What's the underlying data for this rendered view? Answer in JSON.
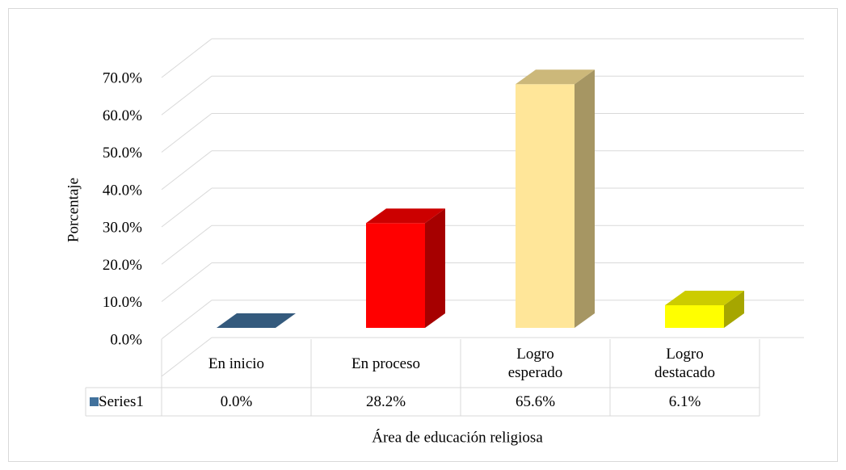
{
  "chart_data": {
    "type": "bar3d",
    "y_label": "Porcentaje",
    "x_label": "Área de educación religiosa",
    "categories": [
      "En inicio",
      "En proceso",
      "Logro esperado",
      "Logro destacado"
    ],
    "series": [
      {
        "name": "Series1",
        "color": "#41719c",
        "values": [
          0.0,
          28.2,
          65.6,
          6.1
        ],
        "value_labels": [
          "0.0%",
          "28.2%",
          "65.6%",
          "6.1%"
        ]
      }
    ],
    "colors": [
      "#41719c",
      "#ff0000",
      "#ffe699",
      "#ffff00"
    ],
    "ylim": [
      0,
      80
    ],
    "yticks": [
      {
        "value": 0,
        "label": "0.0%"
      },
      {
        "value": 10,
        "label": "10.0%"
      },
      {
        "value": 20,
        "label": "20.0%"
      },
      {
        "value": 30,
        "label": "30.0%"
      },
      {
        "value": 40,
        "label": "40.0%"
      },
      {
        "value": 50,
        "label": "50.0%"
      },
      {
        "value": 60,
        "label": "60.0%"
      },
      {
        "value": 70,
        "label": "70.0%"
      }
    ],
    "grid": true,
    "data_table": true
  }
}
